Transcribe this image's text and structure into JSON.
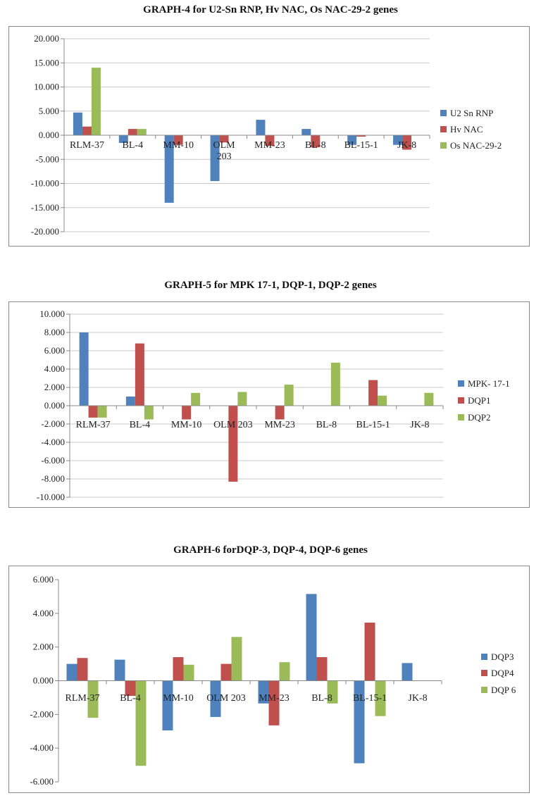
{
  "charts": [
    {
      "chart_data": {
        "type": "bar",
        "title": "GRAPH-4 for U2-Sn RNP, Hv NAC, Os NAC-29-2 genes",
        "categories": [
          "RLM-37",
          "BL-4",
          "MM-10",
          "OLM\n203",
          "MM-23",
          "BL-8",
          "BL-15-1",
          "JK-8"
        ],
        "ylim": [
          -20,
          20
        ],
        "yticks": [
          20,
          15,
          10,
          5,
          0,
          -5,
          -10,
          -15,
          -20
        ],
        "tick_labels": [
          "20.000",
          "15.000",
          "10.000",
          "5.000",
          "0.000",
          "-5.000",
          "-10.000",
          "-15.000",
          "-20.000"
        ],
        "legend_position": "right",
        "grid": true,
        "series": [
          {
            "name": "U2 Sn RNP",
            "color": "#4f81bd",
            "values": [
              4.7,
              -1.6,
              -14.0,
              -9.5,
              3.2,
              1.3,
              -2.0,
              -2.0
            ]
          },
          {
            "name": "Hv NAC",
            "color": "#c0504d",
            "values": [
              1.8,
              1.3,
              -2.0,
              -1.5,
              -2.2,
              -2.5,
              -0.3,
              -3.0
            ]
          },
          {
            "name": "Os NAC-29-2",
            "color": "#9bbb59",
            "values": [
              14.0,
              1.3,
              0,
              0,
              0,
              0,
              0,
              0
            ]
          }
        ]
      }
    },
    {
      "chart_data": {
        "type": "bar",
        "title": "GRAPH-5 for MPK 17-1, DQP-1, DQP-2 genes",
        "categories": [
          "RLM-37",
          "BL-4",
          "MM-10",
          "OLM 203",
          "MM-23",
          "BL-8",
          "BL-15-1",
          "JK-8"
        ],
        "ylim": [
          -10,
          10
        ],
        "yticks": [
          10,
          8,
          6,
          4,
          2,
          0,
          -2,
          -4,
          -6,
          -8,
          -10
        ],
        "tick_labels": [
          "10.000",
          "8.000",
          "6.000",
          "4.000",
          "2.000",
          "0.000",
          "-2.000",
          "-4.000",
          "-6.000",
          "-8.000",
          "-10.000"
        ],
        "legend_position": "right",
        "grid": true,
        "series": [
          {
            "name": "MPK- 17-1",
            "color": "#4f81bd",
            "values": [
              8.0,
              1.0,
              0,
              0,
              0,
              0,
              0,
              0
            ]
          },
          {
            "name": "DQP1",
            "color": "#c0504d",
            "values": [
              -1.3,
              6.8,
              -1.5,
              -8.3,
              -1.5,
              0,
              2.8,
              0
            ]
          },
          {
            "name": "DQP2",
            "color": "#9bbb59",
            "values": [
              -1.3,
              -1.5,
              1.4,
              1.5,
              2.3,
              4.7,
              1.1,
              1.4
            ]
          }
        ]
      }
    },
    {
      "chart_data": {
        "type": "bar",
        "title": "GRAPH-6 forDQP-3, DQP-4, DQP-6  genes",
        "categories": [
          "RLM-37",
          "BL-4",
          "MM-10",
          "OLM 203",
          "MM-23",
          "BL-8",
          "BL-15-1",
          "JK-8"
        ],
        "ylim": [
          -6,
          6
        ],
        "yticks": [
          6,
          4,
          2,
          0,
          -2,
          -4,
          -6
        ],
        "tick_labels": [
          "6.000",
          "4.000",
          "2.000",
          "0.000",
          "-2.000",
          "-4.000",
          "-6.000"
        ],
        "legend_position": "right",
        "grid": false,
        "series": [
          {
            "name": "DQP3",
            "color": "#4f81bd",
            "values": [
              1.0,
              1.25,
              -2.95,
              -2.15,
              -1.35,
              5.15,
              -4.9,
              1.05
            ]
          },
          {
            "name": "DQP4",
            "color": "#c0504d",
            "values": [
              1.35,
              -0.9,
              1.4,
              1.0,
              -2.65,
              1.4,
              3.45,
              0
            ]
          },
          {
            "name": "DQP 6",
            "color": "#9bbb59",
            "values": [
              -2.2,
              -5.05,
              0.95,
              2.6,
              1.1,
              -1.35,
              -2.1,
              0
            ]
          }
        ]
      }
    }
  ]
}
